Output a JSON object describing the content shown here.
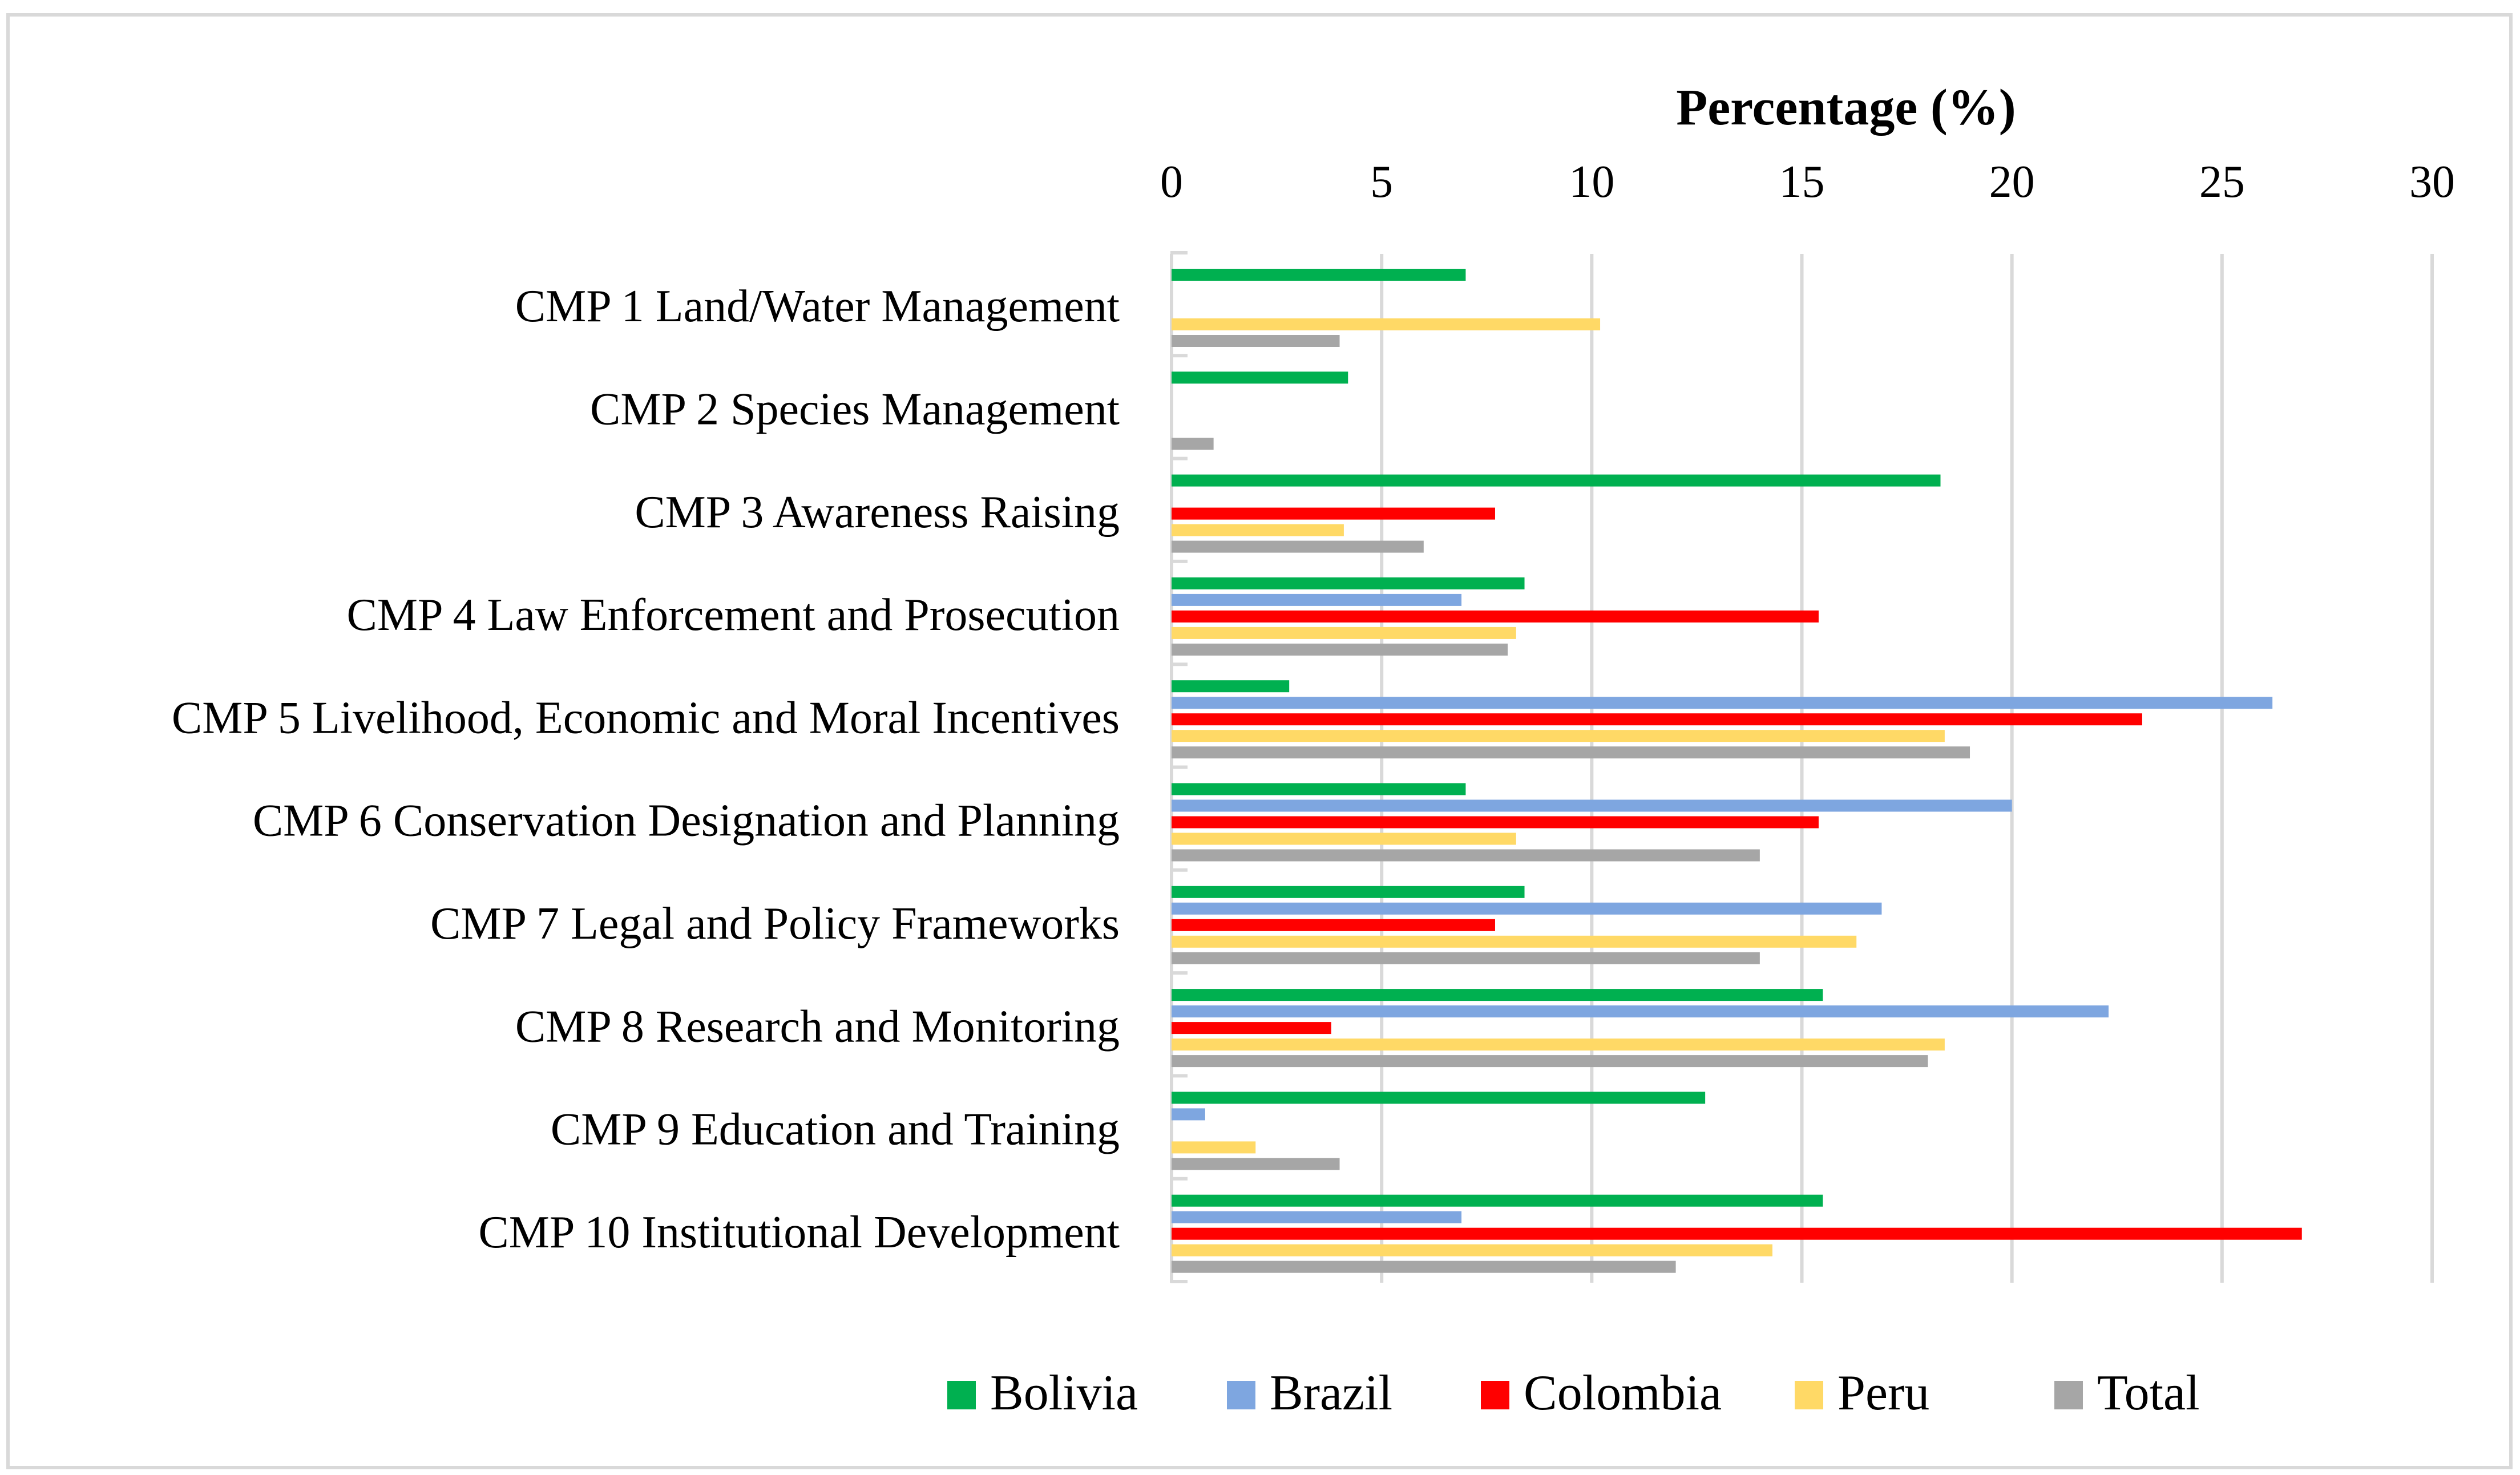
{
  "chart_data": {
    "type": "bar",
    "orientation": "horizontal",
    "title": "Percentage (%)",
    "xlabel": "Percentage (%)",
    "ylabel": "",
    "xlim": [
      0,
      30
    ],
    "xticks": [
      0,
      5,
      10,
      15,
      20,
      25,
      30
    ],
    "xtick_labels": [
      "0",
      "5",
      "10",
      "15",
      "20",
      "25",
      "30"
    ],
    "grid": true,
    "legend_position": "bottom",
    "categories": [
      "CMP 1 Land/Water Management",
      "CMP 2 Species Management",
      "CMP 3 Awareness Raising",
      "CMP 4 Law Enforcement and Prosecution",
      "CMP 5 Livelihood, Economic and Moral Incentives",
      "CMP 6 Conservation Designation and Planning",
      "CMP 7 Legal and Policy Frameworks",
      "CMP 8 Research and Monitoring",
      "CMP 9 Education and Training",
      "CMP 10 Institutional Development"
    ],
    "series": [
      {
        "name": "Bolivia",
        "color": "#00b050",
        "values": [
          7.0,
          4.2,
          18.3,
          8.4,
          2.8,
          7.0,
          8.4,
          15.5,
          12.7,
          15.5
        ]
      },
      {
        "name": "Brazil",
        "color": "#7ea6e0",
        "values": [
          0,
          0,
          0,
          6.9,
          26.2,
          20.0,
          16.9,
          22.3,
          0.8,
          6.9
        ]
      },
      {
        "name": "Colombia",
        "color": "#ff0000",
        "values": [
          0,
          0,
          7.7,
          15.4,
          23.1,
          15.4,
          7.7,
          3.8,
          0,
          26.9
        ]
      },
      {
        "name": "Peru",
        "color": "#ffd966",
        "values": [
          10.2,
          0,
          4.1,
          8.2,
          18.4,
          8.2,
          16.3,
          18.4,
          2.0,
          14.3
        ]
      },
      {
        "name": "Total",
        "color": "#a6a6a6",
        "values": [
          4.0,
          1.0,
          6.0,
          8.0,
          19.0,
          14.0,
          14.0,
          18.0,
          4.0,
          12.0
        ]
      }
    ]
  },
  "colors": {
    "grid": "#d9d9d9",
    "frame": "#d9d9d9",
    "text": "#000000"
  }
}
